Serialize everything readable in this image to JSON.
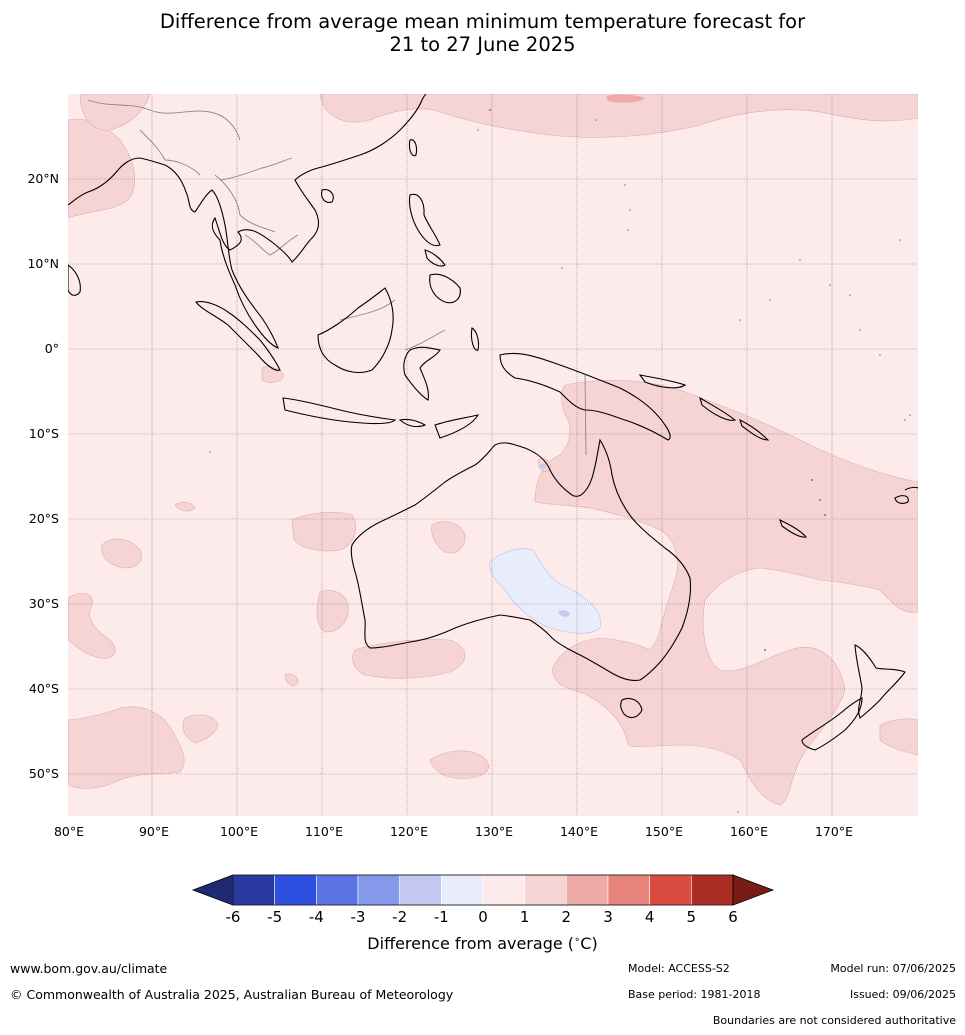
{
  "title": {
    "line1": "Difference from average mean minimum temperature forecast for",
    "line2": "21 to 27 June 2025"
  },
  "map": {
    "lon_range": [
      80,
      180
    ],
    "lat_range": [
      -55,
      30
    ],
    "lon_ticks": [
      {
        "value": 80,
        "label": "80°E"
      },
      {
        "value": 90,
        "label": "90°E"
      },
      {
        "value": 100,
        "label": "100°E"
      },
      {
        "value": 110,
        "label": "110°E"
      },
      {
        "value": 120,
        "label": "120°E"
      },
      {
        "value": 130,
        "label": "130°E"
      },
      {
        "value": 140,
        "label": "140°E"
      },
      {
        "value": 150,
        "label": "150°E"
      },
      {
        "value": 160,
        "label": "160°E"
      },
      {
        "value": 170,
        "label": "170°E"
      }
    ],
    "lat_ticks": [
      {
        "value": 20,
        "label": "20°N"
      },
      {
        "value": 10,
        "label": "10°N"
      },
      {
        "value": 0,
        "label": "0°"
      },
      {
        "value": -10,
        "label": "10°S"
      },
      {
        "value": -20,
        "label": "20°S"
      },
      {
        "value": -30,
        "label": "30°S"
      },
      {
        "value": -40,
        "label": "40°S"
      },
      {
        "value": -50,
        "label": "50°S"
      }
    ],
    "colors": {
      "background_0_1": "#fcebea",
      "band_1_2": "#f6d4d3",
      "band_2_3": "#eeaaa6",
      "band_m1_0": "#e8ecfb",
      "band_m2_m1": "#c2c8f2",
      "coast": "#000000",
      "border": "#888888"
    }
  },
  "colorbar": {
    "labels": [
      "-6",
      "-5",
      "-4",
      "-3",
      "-2",
      "-1",
      "0",
      "1",
      "2",
      "3",
      "4",
      "5",
      "6"
    ],
    "colors": [
      "#27389e",
      "#2f4fe0",
      "#5b74e3",
      "#8599ea",
      "#c2c8f2",
      "#e8ecfb",
      "#fcebea",
      "#f6d4d3",
      "#eeaaa6",
      "#e8837c",
      "#db4c40",
      "#aa2c22"
    ],
    "low_extend_color": "#1f2a72",
    "high_extend_color": "#7a1c16",
    "title": "Difference from average (",
    "unit": "C)",
    "degree": "∘"
  },
  "footer": {
    "website": "www.bom.gov.au/climate",
    "copyright": "© Commonwealth of Australia 2025, Australian Bureau of Meteorology",
    "model": "Model: ACCESS-S2",
    "base_period": "Base period: 1981-2018",
    "model_run": "Model run: 07/06/2025",
    "issued": "Issued: 09/06/2025",
    "disclaimer": "Boundaries are not considered authoritative"
  }
}
